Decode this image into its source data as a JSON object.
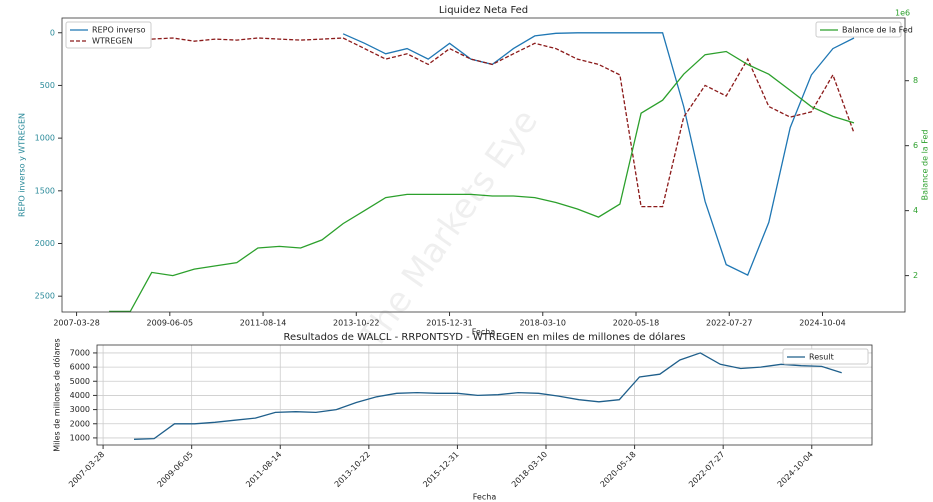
{
  "chart_data": [
    {
      "type": "line",
      "title": "Liquidez Neta Fed",
      "x_label": "Fecha",
      "y_label": "REPO inverso y WTREGEN",
      "y2_label": "Balance de la Fed",
      "y2_offset_label": "1e6",
      "watermark": "The Markets Eye",
      "x": [
        "2008-01-01",
        "2008-07-01",
        "2009-01-01",
        "2009-07-01",
        "2010-01-01",
        "2010-07-01",
        "2011-01-01",
        "2011-07-01",
        "2012-01-01",
        "2012-07-01",
        "2013-01-01",
        "2013-07-01",
        "2014-01-01",
        "2014-07-01",
        "2015-01-01",
        "2015-07-01",
        "2016-01-01",
        "2016-07-01",
        "2017-01-01",
        "2017-07-01",
        "2018-01-01",
        "2018-07-01",
        "2019-01-01",
        "2019-07-01",
        "2020-01-01",
        "2020-07-01",
        "2021-01-01",
        "2021-07-01",
        "2022-01-01",
        "2022-07-01",
        "2023-01-01",
        "2023-07-01",
        "2024-01-01",
        "2024-07-01",
        "2025-01-01",
        "2025-07-01"
      ],
      "xlim": [
        "2006-11-23",
        "2026-09-12"
      ],
      "xticks": [
        "2007-03-28",
        "2009-06-05",
        "2011-08-14",
        "2013-10-22",
        "2015-12-31",
        "2018-03-10",
        "2020-05-18",
        "2022-07-27",
        "2024-10-04"
      ],
      "ylim": [
        2650,
        -140
      ],
      "yticks": [
        0,
        500,
        1000,
        1500,
        2000,
        2500
      ],
      "y2lim": [
        0.88,
        9.93
      ],
      "y2ticks": [
        2,
        4,
        6,
        8
      ],
      "legend": "upper left",
      "legend2": "upper right",
      "series": [
        {
          "name": "REPO inverso",
          "color": "#1f77b4",
          "axis": "y",
          "linestyle": "solid",
          "values": [
            null,
            null,
            null,
            null,
            null,
            null,
            null,
            null,
            null,
            null,
            null,
            10,
            100,
            200,
            150,
            250,
            100,
            250,
            300,
            150,
            30,
            5,
            0,
            0,
            0,
            0,
            0,
            700,
            1600,
            2200,
            2300,
            1800,
            900,
            400,
            150,
            50
          ]
        },
        {
          "name": "WTREGEN",
          "color": "#8b1a1a",
          "axis": "y",
          "linestyle": "dashed",
          "values": [
            null,
            null,
            60,
            50,
            80,
            60,
            70,
            50,
            60,
            70,
            60,
            50,
            150,
            250,
            200,
            300,
            150,
            250,
            300,
            200,
            100,
            150,
            250,
            300,
            400,
            1650,
            1650,
            800,
            500,
            600,
            250,
            700,
            800,
            750,
            400,
            950
          ]
        },
        {
          "name": "Balance de la Fed",
          "color": "#2ca02c",
          "axis": "y2",
          "linestyle": "solid",
          "values": [
            0.9,
            0.9,
            2.1,
            2.0,
            2.2,
            2.3,
            2.4,
            2.85,
            2.9,
            2.85,
            3.1,
            3.6,
            4.0,
            4.4,
            4.5,
            4.5,
            4.5,
            4.5,
            4.45,
            4.45,
            4.4,
            4.25,
            4.05,
            3.8,
            4.2,
            7.0,
            7.4,
            8.2,
            8.8,
            8.9,
            8.5,
            8.2,
            7.7,
            7.2,
            6.9,
            6.7
          ]
        }
      ]
    },
    {
      "type": "line",
      "title": "Resultados de WALCL - RRPONTSYD - WTREGEN en miles de millones de dólares",
      "x_label": "Fecha",
      "y_label": "Miles de millones de dólares",
      "x": [
        "2008-01-01",
        "2008-07-01",
        "2009-01-01",
        "2009-07-01",
        "2010-01-01",
        "2010-07-01",
        "2011-01-01",
        "2011-07-01",
        "2012-01-01",
        "2012-07-01",
        "2013-01-01",
        "2013-07-01",
        "2014-01-01",
        "2014-07-01",
        "2015-01-01",
        "2015-07-01",
        "2016-01-01",
        "2016-07-01",
        "2017-01-01",
        "2017-07-01",
        "2018-01-01",
        "2018-07-01",
        "2019-01-01",
        "2019-07-01",
        "2020-01-01",
        "2020-07-01",
        "2021-01-01",
        "2021-07-01",
        "2022-01-01",
        "2022-07-01",
        "2023-01-01",
        "2023-07-01",
        "2024-01-01",
        "2024-07-01",
        "2025-01-01",
        "2025-07-01"
      ],
      "xlim": [
        "2007-02-01",
        "2026-04-01"
      ],
      "xticks": [
        "2007-03-28",
        "2009-06-05",
        "2011-08-14",
        "2013-10-22",
        "2015-12-31",
        "2018-03-10",
        "2020-05-18",
        "2022-07-27",
        "2024-10-04"
      ],
      "ylim": [
        500,
        7560
      ],
      "yticks": [
        1000,
        2000,
        3000,
        4000,
        5000,
        6000,
        7000
      ],
      "grid": true,
      "legend": "upper right",
      "series": [
        {
          "name": "Result",
          "color": "#1f5f8b",
          "values": [
            900,
            950,
            2000,
            2000,
            2100,
            2250,
            2400,
            2800,
            2850,
            2800,
            3000,
            3500,
            3900,
            4150,
            4200,
            4150,
            4150,
            4000,
            4050,
            4200,
            4150,
            3950,
            3700,
            3550,
            3700,
            5300,
            5500,
            6500,
            7000,
            6200,
            5900,
            6000,
            6200,
            6100,
            6050,
            5600
          ]
        }
      ]
    }
  ]
}
